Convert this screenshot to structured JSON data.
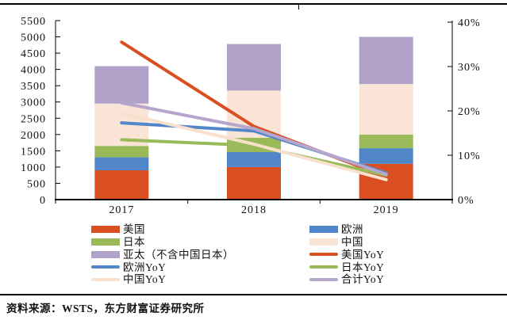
{
  "page": {
    "source_note": "资料来源：WSTS，东方财富证券研究所"
  },
  "chart_data": {
    "type": "bar",
    "subtype": "stacked-bar-with-yoy-lines",
    "categories": [
      "2017",
      "2018",
      "2019"
    ],
    "bar_series": [
      {
        "name": "美国",
        "color": "#D94F22",
        "values": [
          900,
          1000,
          1100
        ]
      },
      {
        "name": "欧洲",
        "color": "#5187C8",
        "values": [
          400,
          460,
          480
        ]
      },
      {
        "name": "日本",
        "color": "#9ABA5A",
        "values": [
          350,
          440,
          420
        ]
      },
      {
        "name": "中国",
        "color": "#FAE4D5",
        "values": [
          1300,
          1450,
          1550
        ]
      },
      {
        "name": "亚太（不含中国日本）",
        "color": "#B1A2C9",
        "values": [
          1150,
          1430,
          1450
        ]
      }
    ],
    "line_series": [
      {
        "name": "美国YoY",
        "color": "#D94F22",
        "values": [
          35.5,
          16.5,
          5.2
        ]
      },
      {
        "name": "欧洲YoY",
        "color": "#5187C8",
        "values": [
          17.3,
          15.5,
          6.0
        ]
      },
      {
        "name": "日本YoY",
        "color": "#9ABA5A",
        "values": [
          13.5,
          12.2,
          5.5
        ]
      },
      {
        "name": "中国YoY",
        "color": "#F8E0CD",
        "values": [
          19.5,
          12.5,
          4.5
        ]
      },
      {
        "name": "合计YoY",
        "color": "#B5A6CE",
        "values": [
          21.8,
          16.0,
          5.7
        ]
      }
    ],
    "left_axis": {
      "min": 0,
      "max": 5500,
      "step": 500,
      "tick_labels": [
        "0",
        "500",
        "1000",
        "1500",
        "2000",
        "2500",
        "3000",
        "3500",
        "4000",
        "4500",
        "5000",
        "5500"
      ]
    },
    "right_axis": {
      "min": 0,
      "max": 40,
      "step": 10,
      "tick_labels": [
        "0%",
        "10%",
        "20%",
        "30%",
        "40%"
      ]
    },
    "title": "",
    "xlabel": "",
    "ylabel": "",
    "grid": false,
    "legend_position": "bottom",
    "legend": {
      "columns": [
        [
          {
            "label": "美国",
            "swatch": "bar",
            "color": "#D94F22"
          },
          {
            "label": "日本",
            "swatch": "bar",
            "color": "#9ABA5A"
          },
          {
            "label": "亚太（不含中国日本）",
            "swatch": "bar",
            "color": "#B1A2C9"
          },
          {
            "label": "欧洲YoY",
            "swatch": "line",
            "color": "#5187C8"
          },
          {
            "label": "中国YoY",
            "swatch": "line",
            "color": "#F8E0CD"
          }
        ],
        [
          {
            "label": "欧洲",
            "swatch": "bar",
            "color": "#5187C8"
          },
          {
            "label": "中国",
            "swatch": "bar",
            "color": "#FAE4D5"
          },
          {
            "label": "美国YoY",
            "swatch": "line",
            "color": "#D94F22"
          },
          {
            "label": "日本YoY",
            "swatch": "line",
            "color": "#9ABA5A"
          },
          {
            "label": "合计YoY",
            "swatch": "line",
            "color": "#B5A6CE"
          }
        ]
      ]
    }
  }
}
